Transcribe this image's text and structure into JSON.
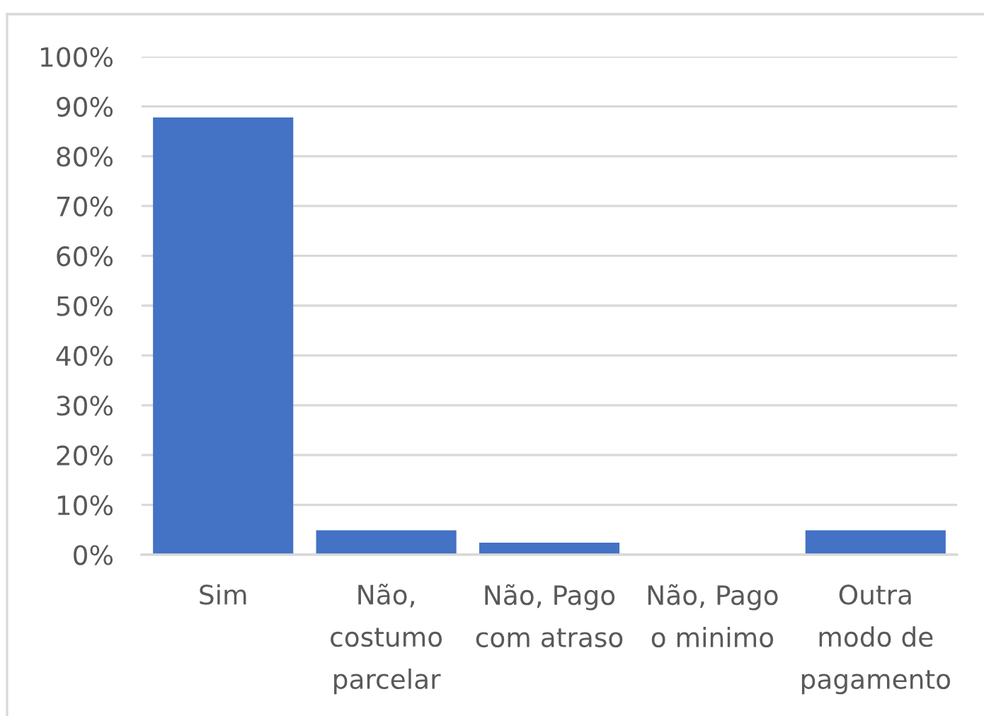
{
  "chart_data": {
    "type": "bar",
    "categories": [
      "Sim",
      "Não,\ncostumo\nparcelar",
      "Não, Pago\ncom atraso",
      "Não, Pago\no minimo",
      "Outra\nmodo de\npagamento"
    ],
    "values": [
      87.8,
      4.9,
      2.4,
      0,
      4.9
    ],
    "color": "#4472c4",
    "ylim": [
      0,
      100
    ],
    "yticks": [
      {
        "value": 0,
        "label": "0%"
      },
      {
        "value": 10,
        "label": "10%"
      },
      {
        "value": 20,
        "label": "20%"
      },
      {
        "value": 30,
        "label": "30%"
      },
      {
        "value": 40,
        "label": "40%"
      },
      {
        "value": 50,
        "label": "50%"
      },
      {
        "value": 60,
        "label": "60%"
      },
      {
        "value": 70,
        "label": "70%"
      },
      {
        "value": 80,
        "label": "80%"
      },
      {
        "value": 90,
        "label": "90%"
      },
      {
        "value": 100,
        "label": "100%"
      }
    ],
    "grid": "y"
  }
}
